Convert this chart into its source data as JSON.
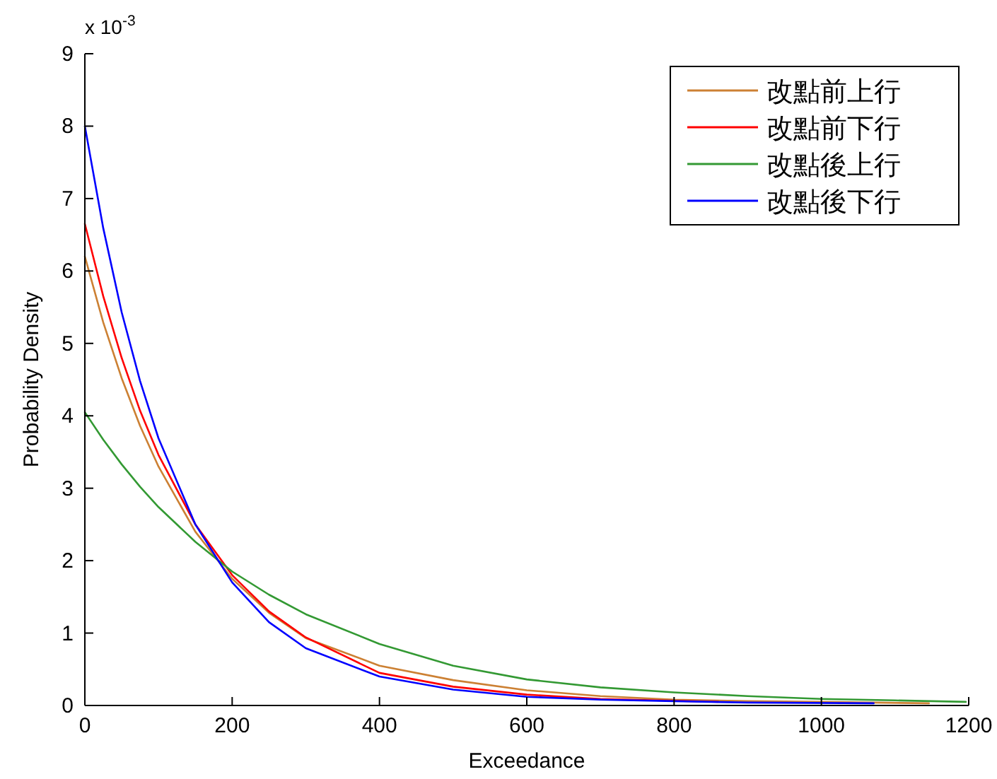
{
  "chart_data": {
    "type": "line",
    "xlabel": "Exceedance",
    "ylabel": "Probability Density",
    "annotations": [
      "x 10$^{-3}$"
    ],
    "xlim": [
      0,
      1200
    ],
    "xticks": [
      0,
      200,
      400,
      600,
      800,
      1000,
      1200
    ],
    "ylim": [
      0,
      9
    ],
    "yticks": [
      0,
      1,
      2,
      3,
      4,
      5,
      6,
      7,
      8,
      9
    ],
    "legend": "top right",
    "series": [
      {
        "name": "改點前上行",
        "color": "#cc8033",
        "x": [
          0,
          25,
          50,
          75,
          100,
          150,
          200,
          250,
          300,
          400,
          500,
          600,
          700,
          800,
          900,
          1000,
          1146
        ],
        "values": [
          6.2,
          5.29,
          4.52,
          3.86,
          3.3,
          2.4,
          1.75,
          1.28,
          0.93,
          0.55,
          0.35,
          0.21,
          0.13,
          0.08,
          0.06,
          0.05,
          0.03
        ]
      },
      {
        "name": "改點前下行",
        "color": "#ff0000",
        "x": [
          0,
          25,
          50,
          75,
          100,
          150,
          200,
          250,
          300,
          400,
          500,
          600,
          700,
          860
        ],
        "values": [
          6.65,
          5.65,
          4.8,
          4.07,
          3.46,
          2.5,
          1.8,
          1.3,
          0.94,
          0.45,
          0.26,
          0.15,
          0.09,
          0.05
        ]
      },
      {
        "name": "改點後上行",
        "color": "#339933",
        "x": [
          0,
          25,
          50,
          75,
          100,
          150,
          200,
          250,
          300,
          400,
          500,
          600,
          700,
          800,
          900,
          1000,
          1100,
          1196
        ],
        "values": [
          4.05,
          3.67,
          3.33,
          3.02,
          2.74,
          2.26,
          1.85,
          1.53,
          1.26,
          0.85,
          0.55,
          0.36,
          0.25,
          0.18,
          0.13,
          0.09,
          0.07,
          0.05
        ]
      },
      {
        "name": "改點後下行",
        "color": "#0000ff",
        "x": [
          0,
          25,
          50,
          75,
          100,
          150,
          200,
          250,
          300,
          400,
          500,
          600,
          700,
          800,
          900,
          1071
        ],
        "values": [
          8.0,
          6.59,
          5.43,
          4.48,
          3.69,
          2.5,
          1.7,
          1.15,
          0.79,
          0.4,
          0.22,
          0.12,
          0.08,
          0.06,
          0.04,
          0.03
        ]
      }
    ]
  }
}
